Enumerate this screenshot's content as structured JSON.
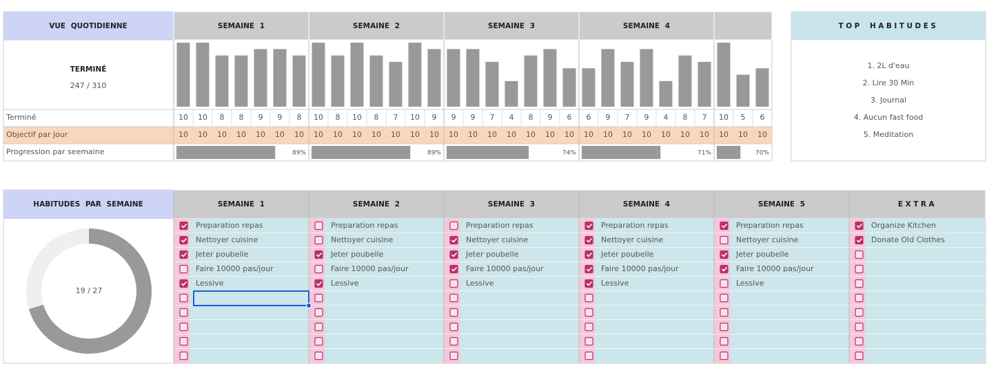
{
  "daily": {
    "title": "VUE QUOTIDIENNE",
    "summary_label": "TERMINÉ",
    "summary": "247 / 310",
    "row_labels": [
      "Terminé",
      "Objectif par jour",
      "Progression par seemaine"
    ],
    "weeks": [
      {
        "title": "SEMAINE 1",
        "done": [
          10,
          10,
          8,
          8,
          9,
          9,
          8
        ],
        "goal": [
          10,
          10,
          10,
          10,
          10,
          10,
          10
        ],
        "progress": {
          "value": 89,
          "label": "89%"
        }
      },
      {
        "title": "SEMAINE 2",
        "done": [
          10,
          8,
          10,
          8,
          7,
          10,
          9
        ],
        "goal": [
          10,
          10,
          10,
          10,
          10,
          10,
          10
        ],
        "progress": {
          "value": 89,
          "label": "89%"
        }
      },
      {
        "title": "SEMAINE 3",
        "done": [
          9,
          9,
          7,
          4,
          8,
          9,
          6
        ],
        "goal": [
          10,
          10,
          10,
          10,
          10,
          10,
          10
        ],
        "progress": {
          "value": 74,
          "label": "74%"
        }
      },
      {
        "title": "SEMAINE 4",
        "done": [
          6,
          9,
          7,
          9,
          4,
          8,
          7
        ],
        "goal": [
          10,
          10,
          10,
          10,
          10,
          10,
          10
        ],
        "progress": {
          "value": 71,
          "label": "71%"
        }
      },
      {
        "title": null,
        "done": [
          10,
          5,
          6
        ],
        "goal": [
          10,
          10,
          10
        ],
        "progress": {
          "value": 70,
          "label": "70%"
        }
      }
    ]
  },
  "top_habits": {
    "title": "TOP HABITUDES",
    "items": [
      "1. 2L d'eau",
      "2. Lire 30 Min",
      "3. Journal",
      "4. Aucun fast food",
      "5. Meditation"
    ]
  },
  "habits": {
    "title": "HABITUDES PAR SEMAINE",
    "donut": {
      "done": 19,
      "total": 27,
      "label": "19 / 27"
    },
    "columns": [
      {
        "title": "SEMAINE 1",
        "items": [
          "Preparation repas",
          "Nettoyer cuisine",
          "Jeter poubelle",
          "Faire 10000 pas/jour",
          "Lessive"
        ],
        "checked": [
          true,
          true,
          true,
          false,
          true,
          false,
          false,
          false,
          false,
          false
        ]
      },
      {
        "title": "SEMAINE 2",
        "items": [
          "Preparation repas",
          "Nettoyer cuisine",
          "Jeter poubelle",
          "Faire 10000 pas/jour",
          "Lessive"
        ],
        "checked": [
          false,
          false,
          true,
          false,
          true,
          false,
          false,
          false,
          false,
          false
        ]
      },
      {
        "title": "SEMAINE 3",
        "items": [
          "Preparation repas",
          "Nettoyer cuisine",
          "Jeter poubelle",
          "Faire 10000 pas/jour",
          "Lessive"
        ],
        "checked": [
          false,
          true,
          true,
          true,
          false,
          false,
          false,
          false,
          false,
          false
        ]
      },
      {
        "title": "SEMAINE 4",
        "items": [
          "Preparation repas",
          "Nettoyer cuisine",
          "Jeter poubelle",
          "Faire 10000 pas/jour",
          "Lessive"
        ],
        "checked": [
          true,
          true,
          true,
          true,
          true,
          false,
          false,
          false,
          false,
          false
        ]
      },
      {
        "title": "SEMAINE 5",
        "items": [
          "Preparation repas",
          "Nettoyer cuisine",
          "Jeter poubelle",
          "Faire 10000 pas/jour",
          "Lessive"
        ],
        "checked": [
          true,
          false,
          true,
          true,
          false,
          false,
          false,
          false,
          false,
          false
        ]
      },
      {
        "title": "EXTRA",
        "items": [
          "Organize Kitchen",
          "Donate Old Clothes"
        ],
        "checked": [
          true,
          true,
          false,
          false,
          false,
          false,
          false,
          false,
          false,
          false
        ]
      }
    ]
  }
}
